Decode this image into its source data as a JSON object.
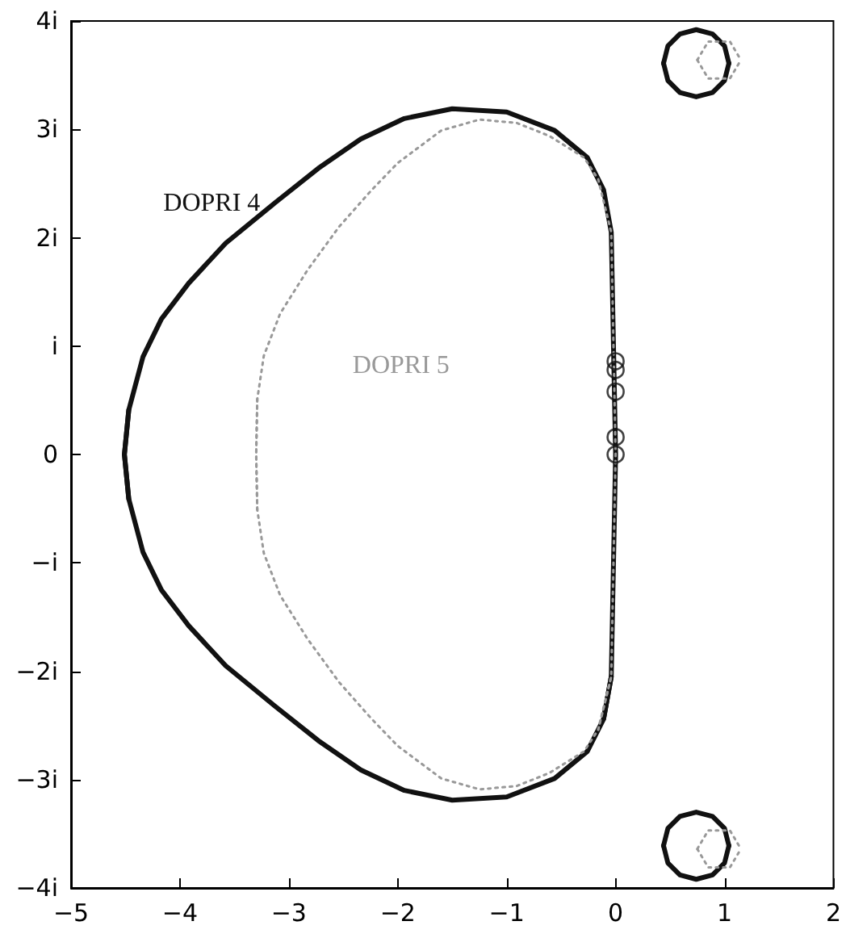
{
  "chart_data": {
    "type": "line",
    "xlim": [
      -5,
      2
    ],
    "ylim": [
      -4,
      4
    ],
    "xticks": [
      {
        "value": -5,
        "label": "−5"
      },
      {
        "value": -4,
        "label": "−4"
      },
      {
        "value": -3,
        "label": "−3"
      },
      {
        "value": -2,
        "label": "−2"
      },
      {
        "value": -1,
        "label": "−1"
      },
      0,
      1,
      2
    ],
    "yticks": [
      {
        "value": -4,
        "label": "−4i"
      },
      {
        "value": -3,
        "label": "−3i"
      },
      {
        "value": -2,
        "label": "−2i"
      },
      {
        "value": -1,
        "label": "−i"
      },
      0,
      {
        "value": 1,
        "label": "i"
      },
      {
        "value": 2,
        "label": "2i"
      },
      {
        "value": 3,
        "label": "3i"
      },
      {
        "value": 4,
        "label": "4i"
      }
    ],
    "grid": false,
    "legend": false,
    "series": [
      {
        "name": "DOPRI 4",
        "color": "#111111",
        "line_style": "solid",
        "marker": "none",
        "x": [
          -4.47,
          -4.51,
          -4.47,
          -4.34,
          -4.17,
          -3.92,
          -3.58,
          -3.13,
          -2.73,
          -2.34,
          -1.94,
          -1.5,
          -1.0,
          -0.56,
          -0.26,
          -0.11,
          -0.04,
          0,
          -0.04,
          -0.11
        ],
        "values": [
          -0.41,
          0,
          0.41,
          0.9,
          1.25,
          1.58,
          1.95,
          2.32,
          2.64,
          2.91,
          3.1,
          3.19,
          3.16,
          2.99,
          2.74,
          2.44,
          2.05,
          0,
          -2.05,
          -2.44
        ]
      },
      {
        "color": "#111111",
        "line_style": "solid",
        "marker": "none",
        "x": [
          -4.47,
          -4.51,
          -4.47,
          -4.34,
          -4.17,
          -3.92,
          -3.58,
          -3.13,
          -2.73,
          -2.34,
          -1.94,
          -1.5,
          -1.0,
          -0.56,
          -0.26,
          -0.11,
          -0.04
        ],
        "values": [
          0.41,
          0,
          -0.41,
          -0.9,
          -1.25,
          -1.58,
          -1.95,
          -2.32,
          -2.64,
          -2.91,
          -3.1,
          -3.19,
          -3.16,
          -2.99,
          -2.74,
          -2.44,
          -2.05
        ]
      },
      {
        "name": "DOPRI 5",
        "color": "#999999",
        "line_style": "dotted",
        "marker": "none",
        "x": [
          -3.29,
          -3.3,
          -3.29,
          -3.23,
          -3.08,
          -2.83,
          -2.54,
          -2.24,
          -2.0,
          -1.6,
          -1.25,
          -0.91,
          -0.61,
          -0.29,
          -0.16,
          -0.04,
          0,
          -0.04,
          -0.16
        ],
        "values": [
          -0.51,
          0,
          0.51,
          0.91,
          1.3,
          1.7,
          2.1,
          2.44,
          2.69,
          2.99,
          3.09,
          3.06,
          2.94,
          2.74,
          2.54,
          2.05,
          0,
          -2.05,
          -2.54
        ]
      },
      {
        "color": "#999999",
        "line_style": "dotted",
        "marker": "none",
        "x": [
          -3.29,
          -3.3,
          -3.29,
          -3.23,
          -3.08,
          -2.83,
          -2.54,
          -2.24,
          -2.0,
          -1.6,
          -1.25,
          -0.91,
          -0.61,
          -0.29,
          -0.16,
          -0.04
        ],
        "values": [
          0.51,
          0,
          -0.51,
          -0.91,
          -1.3,
          -1.7,
          -2.1,
          -2.44,
          -2.69,
          -2.99,
          -3.09,
          -3.06,
          -2.94,
          -2.74,
          -2.54,
          -2.05
        ]
      },
      {
        "color": "#111111",
        "line_style": "solid",
        "marker": "none",
        "x": [
          0.44,
          0.48,
          0.59,
          0.74,
          0.89,
          1.0,
          1.04
        ],
        "values": [
          3.61,
          3.77,
          3.88,
          3.92,
          3.88,
          3.77,
          3.61
        ]
      },
      {
        "color": "#111111",
        "line_style": "solid",
        "marker": "none",
        "x": [
          0.44,
          0.48,
          0.59,
          0.74,
          0.89,
          1.0,
          1.04
        ],
        "values": [
          3.61,
          3.45,
          3.34,
          3.3,
          3.34,
          3.45,
          3.61
        ]
      },
      {
        "color": "#111111",
        "line_style": "solid",
        "marker": "none",
        "x": [
          0.44,
          0.48,
          0.59,
          0.74,
          0.89,
          1.0,
          1.04
        ],
        "values": [
          -3.61,
          -3.45,
          -3.34,
          -3.3,
          -3.34,
          -3.45,
          -3.61
        ]
      },
      {
        "color": "#111111",
        "line_style": "solid",
        "marker": "none",
        "x": [
          0.44,
          0.48,
          0.59,
          0.74,
          0.89,
          1.0,
          1.04
        ],
        "values": [
          -3.61,
          -3.77,
          -3.88,
          -3.92,
          -3.88,
          -3.77,
          -3.61
        ]
      },
      {
        "color": "#999999",
        "line_style": "dotted",
        "marker": "none",
        "x": [
          0.75,
          0.85,
          1.05,
          1.15
        ],
        "values": [
          3.64,
          3.81,
          3.81,
          3.64
        ]
      },
      {
        "color": "#999999",
        "line_style": "dotted",
        "marker": "none",
        "x": [
          0.75,
          0.85,
          1.05,
          1.15
        ],
        "values": [
          3.64,
          3.47,
          3.47,
          3.64
        ]
      },
      {
        "color": "#999999",
        "line_style": "dotted",
        "marker": "none",
        "x": [
          0.75,
          0.85,
          1.05,
          1.15
        ],
        "values": [
          -3.64,
          -3.47,
          -3.47,
          -3.64
        ]
      },
      {
        "color": "#999999",
        "line_style": "dotted",
        "marker": "none",
        "x": [
          0.75,
          0.85,
          1.05,
          1.15
        ],
        "values": [
          -3.64,
          -3.81,
          -3.81,
          -3.64
        ]
      },
      {
        "type": "scatter",
        "color": "#111111",
        "marker": "circle",
        "x": [
          0,
          0,
          0,
          0,
          0
        ],
        "values": [
          0,
          0.16,
          0.58,
          0.78,
          0.86
        ]
      }
    ]
  }
}
